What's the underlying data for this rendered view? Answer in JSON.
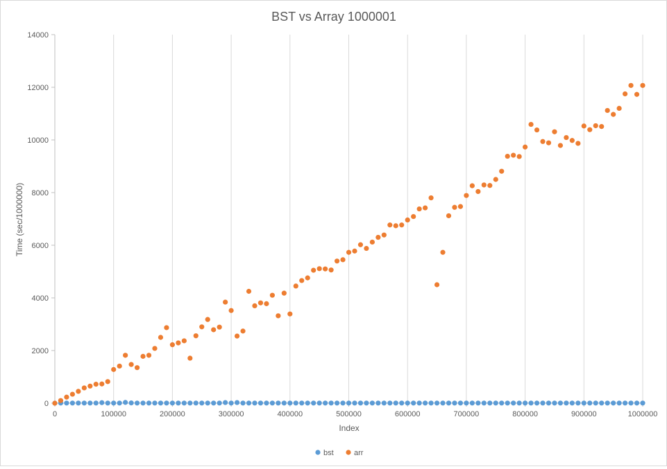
{
  "chart_data": {
    "type": "scatter",
    "title": "BST vs Array 1000001",
    "xlabel": "Index",
    "ylabel": "Time (sec/1000000)",
    "xlim": [
      0,
      1000000
    ],
    "ylim": [
      0,
      14000
    ],
    "xticks": [
      "0",
      "100000",
      "200000",
      "300000",
      "400000",
      "500000",
      "600000",
      "700000",
      "800000",
      "900000",
      "1000000"
    ],
    "yticks": [
      "0",
      "2000",
      "4000",
      "6000",
      "8000",
      "10000",
      "12000",
      "14000"
    ],
    "grid": "vertical",
    "legend_position": "bottom",
    "series": [
      {
        "name": "bst",
        "color": "#5b9bd5",
        "x": [
          0,
          10000,
          20000,
          30000,
          40000,
          50000,
          60000,
          70000,
          80000,
          90000,
          100000,
          110000,
          120000,
          130000,
          140000,
          150000,
          160000,
          170000,
          180000,
          190000,
          200000,
          210000,
          220000,
          230000,
          240000,
          250000,
          260000,
          270000,
          280000,
          290000,
          300000,
          310000,
          320000,
          330000,
          340000,
          350000,
          360000,
          370000,
          380000,
          390000,
          400000,
          410000,
          420000,
          430000,
          440000,
          450000,
          460000,
          470000,
          480000,
          490000,
          500000,
          510000,
          520000,
          530000,
          540000,
          550000,
          560000,
          570000,
          580000,
          590000,
          600000,
          610000,
          620000,
          630000,
          640000,
          650000,
          660000,
          670000,
          680000,
          690000,
          700000,
          710000,
          720000,
          730000,
          740000,
          750000,
          760000,
          770000,
          780000,
          790000,
          800000,
          810000,
          820000,
          830000,
          840000,
          850000,
          860000,
          870000,
          880000,
          890000,
          900000,
          910000,
          920000,
          930000,
          940000,
          950000,
          960000,
          970000,
          980000,
          990000,
          1000000
        ],
        "y": [
          0,
          5,
          5,
          5,
          5,
          5,
          5,
          5,
          20,
          5,
          5,
          5,
          30,
          10,
          5,
          5,
          5,
          5,
          5,
          5,
          5,
          5,
          5,
          5,
          5,
          5,
          5,
          5,
          5,
          25,
          5,
          25,
          5,
          5,
          5,
          5,
          5,
          5,
          5,
          5,
          5,
          5,
          5,
          5,
          5,
          5,
          5,
          5,
          5,
          5,
          5,
          5,
          5,
          5,
          5,
          5,
          5,
          5,
          5,
          5,
          5,
          5,
          5,
          5,
          5,
          5,
          5,
          5,
          5,
          5,
          5,
          5,
          5,
          5,
          5,
          5,
          5,
          5,
          5,
          5,
          5,
          5,
          5,
          5,
          5,
          5,
          5,
          5,
          5,
          5,
          5,
          5,
          5,
          5,
          5,
          5,
          5,
          5,
          5,
          5,
          5
        ]
      },
      {
        "name": "arr",
        "color": "#ed7d31",
        "x": [
          0,
          10000,
          20000,
          30000,
          40000,
          50000,
          60000,
          70000,
          80000,
          90000,
          100000,
          110000,
          120000,
          130000,
          140000,
          150000,
          160000,
          170000,
          180000,
          190000,
          200000,
          210000,
          220000,
          230000,
          240000,
          250000,
          260000,
          270000,
          280000,
          290000,
          300000,
          310000,
          320000,
          330000,
          340000,
          350000,
          360000,
          370000,
          380000,
          390000,
          400000,
          410000,
          420000,
          430000,
          440000,
          450000,
          460000,
          470000,
          480000,
          490000,
          500000,
          510000,
          520000,
          530000,
          540000,
          550000,
          560000,
          570000,
          580000,
          590000,
          600000,
          610000,
          620000,
          630000,
          640000,
          650000,
          660000,
          670000,
          680000,
          690000,
          700000,
          710000,
          720000,
          730000,
          740000,
          750000,
          760000,
          770000,
          780000,
          790000,
          800000,
          810000,
          820000,
          830000,
          840000,
          850000,
          860000,
          870000,
          880000,
          890000,
          900000,
          910000,
          920000,
          930000,
          940000,
          950000,
          960000,
          970000,
          980000,
          990000,
          1000000
        ],
        "y": [
          0,
          100,
          230,
          340,
          450,
          580,
          650,
          720,
          730,
          820,
          1280,
          1410,
          1820,
          1470,
          1350,
          1780,
          1820,
          2080,
          2500,
          2870,
          2220,
          2290,
          2370,
          1710,
          2560,
          2900,
          3180,
          2790,
          2890,
          3840,
          3520,
          2550,
          2740,
          4250,
          3700,
          3810,
          3780,
          4100,
          3320,
          4180,
          3390,
          4450,
          4660,
          4760,
          5050,
          5110,
          5100,
          5060,
          5400,
          5450,
          5730,
          5780,
          6020,
          5880,
          6120,
          6300,
          6390,
          6770,
          6740,
          6770,
          6960,
          7090,
          7380,
          7420,
          7800,
          4500,
          5730,
          7120,
          7440,
          7470,
          7890,
          8260,
          8040,
          8290,
          8270,
          8500,
          8810,
          9380,
          9420,
          9370,
          9730,
          10590,
          10380,
          9940,
          9890,
          10310,
          9790,
          10090,
          9980,
          9870,
          10530,
          10390,
          10540,
          10510,
          11120,
          10970,
          11200,
          11750,
          12070,
          11730,
          12070
        ]
      }
    ]
  }
}
